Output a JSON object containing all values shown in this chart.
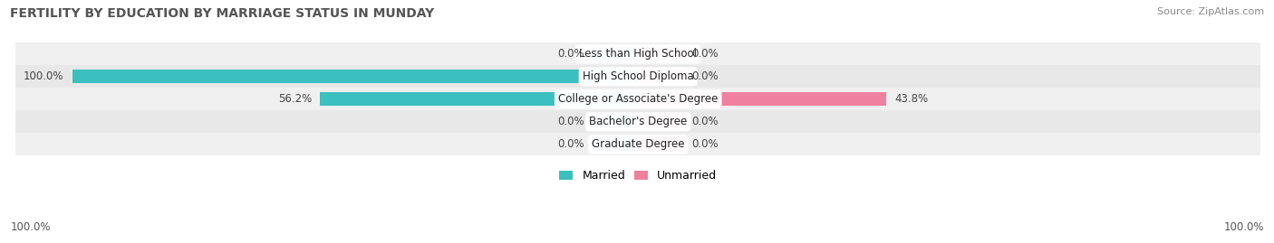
{
  "title": "FERTILITY BY EDUCATION BY MARRIAGE STATUS IN MUNDAY",
  "source": "Source: ZipAtlas.com",
  "categories": [
    "Less than High School",
    "High School Diploma",
    "College or Associate's Degree",
    "Bachelor's Degree",
    "Graduate Degree"
  ],
  "married_values": [
    0.0,
    100.0,
    56.2,
    0.0,
    0.0
  ],
  "unmarried_values": [
    0.0,
    0.0,
    43.8,
    0.0,
    0.0
  ],
  "married_color": "#3BBFBF",
  "unmarried_color": "#F080A0",
  "row_bg_colors": [
    "#F0F0F0",
    "#E8E8E8"
  ],
  "x_max": 100.0,
  "stub_size": 8.0,
  "title_fontsize": 10,
  "source_fontsize": 8,
  "legend_fontsize": 9,
  "tick_fontsize": 8.5,
  "bar_label_fontsize": 8.5,
  "cat_label_fontsize": 8.5
}
